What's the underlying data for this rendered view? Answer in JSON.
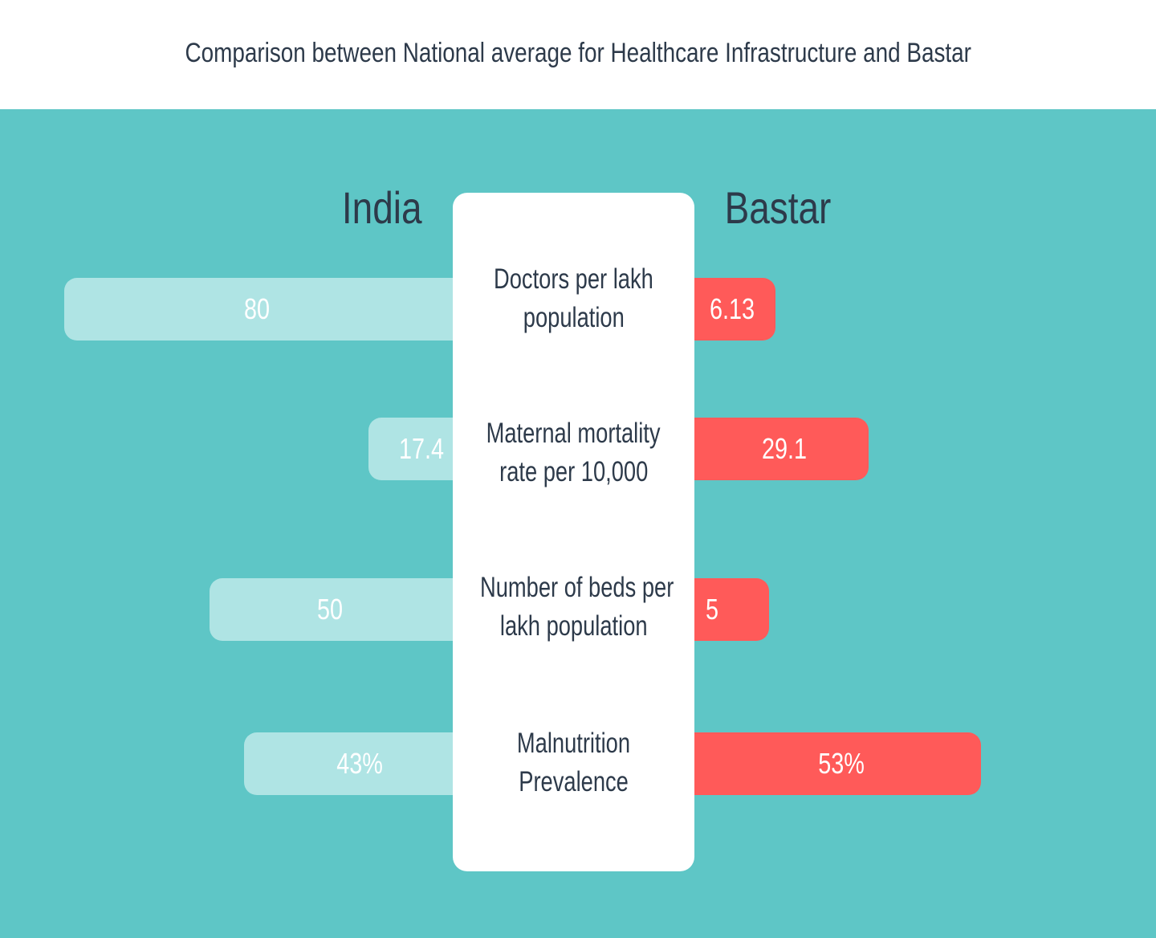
{
  "title": "Comparison between National average for Healthcare Infrastructure and Bastar",
  "chart_data": {
    "type": "bar",
    "orientation": "diverging-horizontal",
    "title": "Comparison between National average for Healthcare Infrastructure and Bastar",
    "categories": [
      "Doctors per lakh population",
      "Maternal mortality rate per 10,000",
      "Number of beds per lakh population",
      "Malnutrition Prevalence"
    ],
    "category_lines": [
      [
        "Doctors per lakh",
        "population"
      ],
      [
        "Maternal mortality",
        "rate per 10,000"
      ],
      [
        "Number of beds per",
        "lakh population"
      ],
      [
        "Malnutrition",
        "Prevalence"
      ]
    ],
    "series": [
      {
        "name": "India",
        "values": [
          80,
          17.4,
          50,
          43
        ],
        "labels": [
          "80",
          "17.4",
          "50",
          "43%"
        ],
        "color": "#afe4e4"
      },
      {
        "name": "Bastar",
        "values": [
          6.13,
          29.1,
          5,
          53
        ],
        "labels": [
          "6.13",
          "29.1",
          "5",
          "53%"
        ],
        "color": "#ff5a59"
      }
    ],
    "legend": "column headings above each side",
    "grid": false
  },
  "colors": {
    "background": "#5ec6c6",
    "header_background": "#ffffff",
    "text": "#2d3a4a",
    "india_bar": "#afe4e4",
    "bastar_bar": "#ff5a59",
    "value_text": "#ffffff"
  }
}
